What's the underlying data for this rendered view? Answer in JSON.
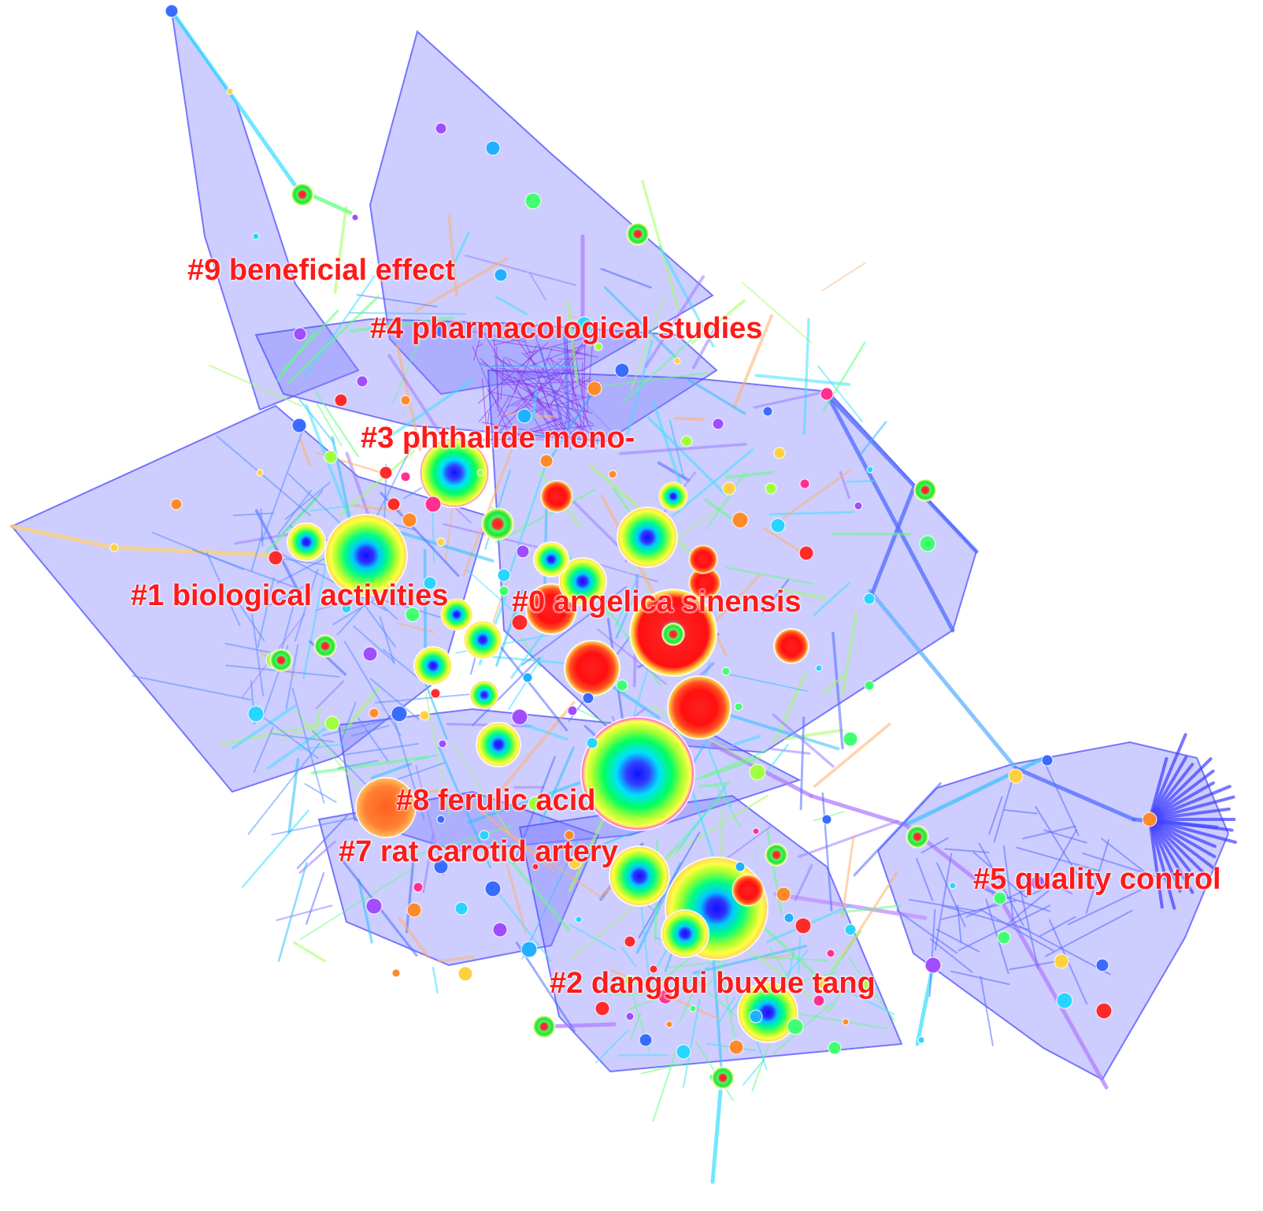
{
  "diagram": {
    "type": "co-citation cluster network",
    "hull_color": "#7b7bff",
    "label_color": "#ff1a1a",
    "clusters": [
      {
        "id": 9,
        "label": "#9 beneficial effect"
      },
      {
        "id": 4,
        "label": "#4 pharmacological studies"
      },
      {
        "id": 3,
        "label": "#3 phthalide mono-"
      },
      {
        "id": 1,
        "label": "#1 biological activities"
      },
      {
        "id": 0,
        "label": "#0 angelica sinensis"
      },
      {
        "id": 8,
        "label": "#8 ferulic acid"
      },
      {
        "id": 7,
        "label": "#7 rat carotid artery"
      },
      {
        "id": 2,
        "label": "#2 danggui buxue tang"
      },
      {
        "id": 5,
        "label": "#5 quality control"
      }
    ]
  }
}
